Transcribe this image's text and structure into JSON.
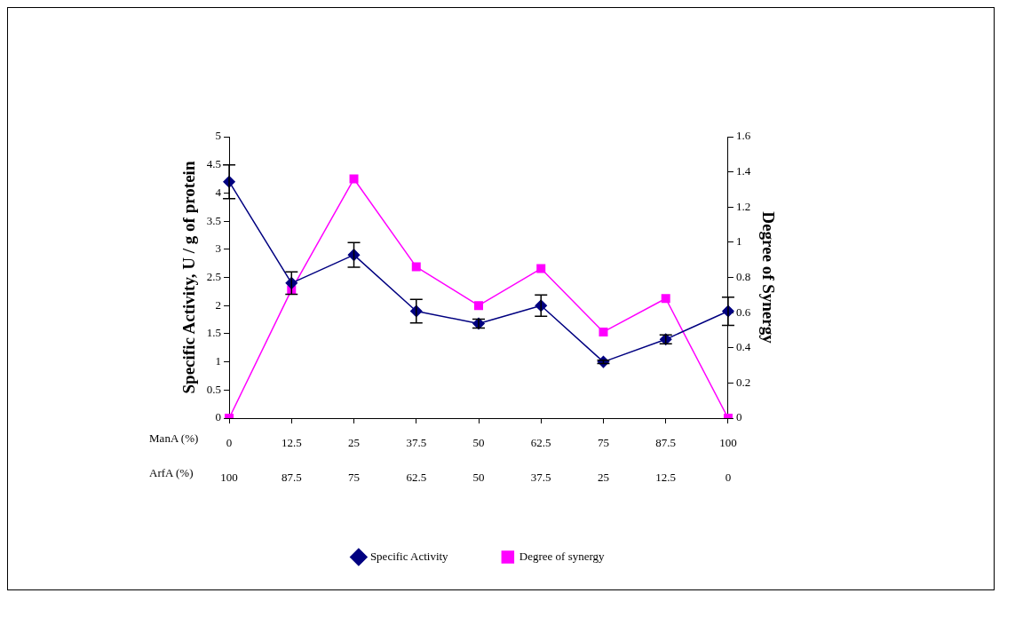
{
  "chart_data": {
    "type": "line",
    "categories": [
      "0\n100",
      "12.5\n87.5",
      "25\n75",
      "37.5\n62.5",
      "50\n50",
      "62.5\n37.5",
      "75\n25",
      "87.5\n12.5",
      "100\n0"
    ],
    "ylabel": "Specific Activity, U / g of protein",
    "y2label": "Degree of Synergy",
    "ylim": [
      0,
      5
    ],
    "yticks": [
      0,
      0.5,
      1,
      1.5,
      2,
      2.5,
      3,
      3.5,
      4,
      4.5,
      5
    ],
    "y2lim": [
      0,
      1.6
    ],
    "y2ticks": [
      0,
      0.2,
      0.4,
      0.6,
      0.8,
      1,
      1.2,
      1.4,
      1.6
    ],
    "series": [
      {
        "name": "Specific Activity",
        "color": "#000080",
        "marker": "diamond",
        "values": [
          4.2,
          2.4,
          2.9,
          1.9,
          1.68,
          2.0,
          1.0,
          1.4,
          1.9
        ],
        "errors": [
          0.3,
          0.2,
          0.22,
          0.21,
          0.08,
          0.19,
          0.03,
          0.08,
          0.25
        ]
      },
      {
        "name": "Degree of synergy",
        "color": "#ff00ff",
        "marker": "square",
        "axis": "y2",
        "values": [
          0,
          0.73,
          1.36,
          0.86,
          0.64,
          0.85,
          0.49,
          0.68,
          0
        ]
      }
    ],
    "annotations": [
      "ManA (%)",
      "ArfA (%)"
    ],
    "legend": "bottom",
    "grid": false,
    "line_style": "solid"
  }
}
